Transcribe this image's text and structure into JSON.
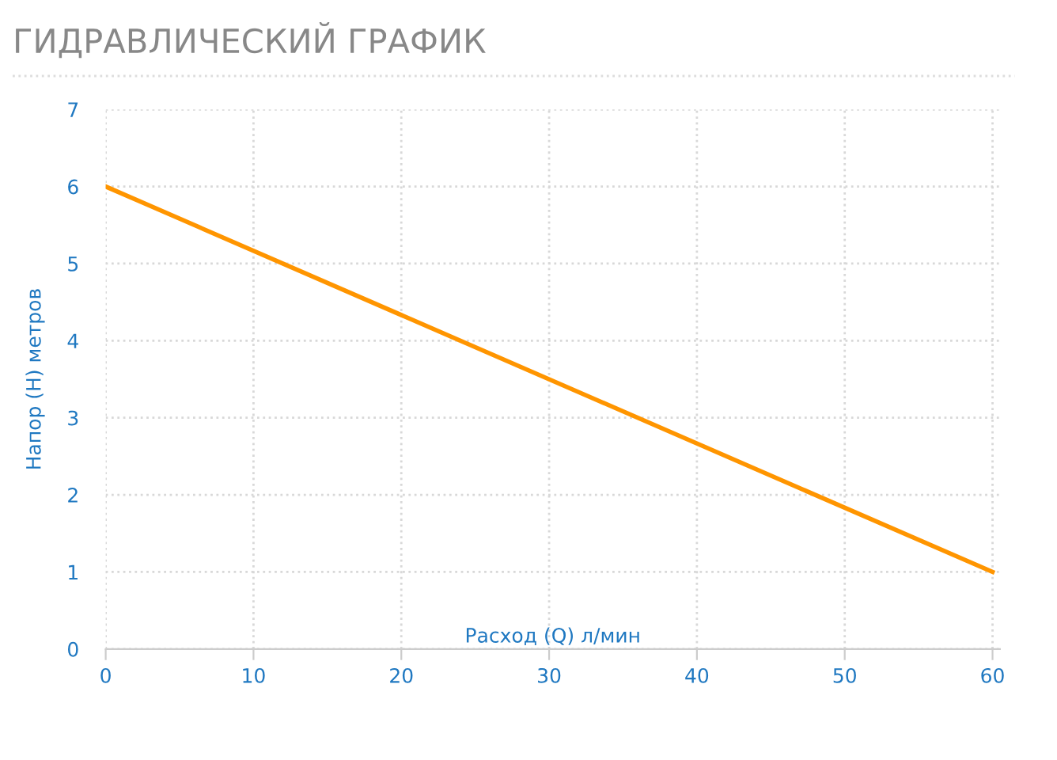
{
  "chart_data": {
    "type": "line",
    "title": "ГИДРАВЛИЧЕСКИЙ ГРАФИК",
    "xlabel": "Расход (Q) л/мин",
    "ylabel": "Напор (H) метров",
    "x": [
      0,
      60
    ],
    "series": [
      {
        "color": "#ff9500",
        "values": [
          6,
          1
        ]
      }
    ],
    "xlim": [
      0,
      60.5
    ],
    "xticks": [
      0,
      10,
      20,
      30,
      40,
      50,
      60
    ],
    "ylim": [
      0,
      7
    ],
    "yticks": [
      0,
      1,
      2,
      3,
      4,
      5,
      6,
      7
    ],
    "grid": true,
    "marker": "none",
    "line_style": "solid"
  }
}
